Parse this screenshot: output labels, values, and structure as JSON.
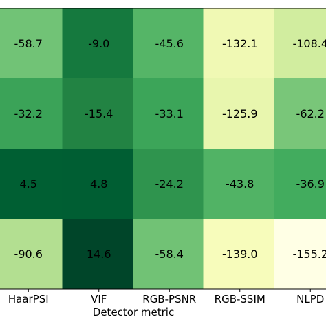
{
  "chart_data": {
    "type": "heatmap",
    "title": "",
    "xlabel": "Detector metric",
    "ylabel": "",
    "x_categories": [
      "HaarPSI",
      "VIF",
      "RGB-PSNR",
      "RGB-SSIM",
      "NLPD"
    ],
    "values": [
      [
        -58.7,
        -9.0,
        -45.6,
        -132.1,
        -108.4
      ],
      [
        -32.2,
        -15.4,
        -33.1,
        -125.9,
        -62.2
      ],
      [
        4.5,
        4.8,
        -24.2,
        -43.8,
        -36.9
      ],
      [
        -90.6,
        14.6,
        -58.4,
        -139.0,
        -155.2
      ]
    ],
    "value_labels": [
      [
        "-58.7",
        "-9.0",
        "-45.6",
        "-132.1",
        "-108.4"
      ],
      [
        "-32.2",
        "-15.4",
        "-33.1",
        "-125.9",
        "-62.2"
      ],
      [
        "4.5",
        "4.8",
        "-24.2",
        "-43.8",
        "-36.9"
      ],
      [
        "-90.6",
        "14.6",
        "-58.4",
        "-139.0",
        "-155.2"
      ]
    ],
    "colormap": "Greens",
    "color_range": [
      -155.2,
      14.6
    ],
    "grid": false,
    "legend": "none"
  }
}
